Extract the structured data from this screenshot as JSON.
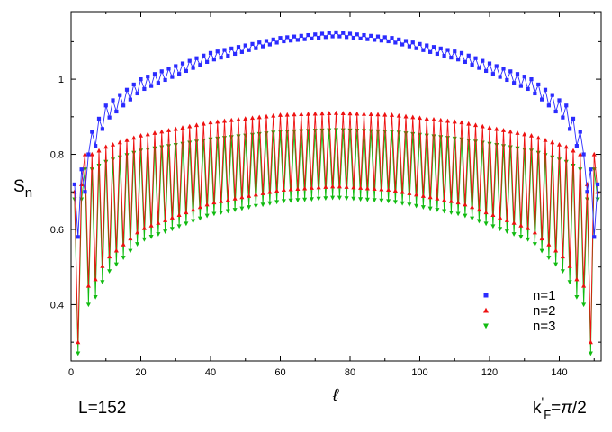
{
  "chart_data": {
    "type": "line",
    "title": "",
    "xlabel": "ℓ",
    "ylabel": "S",
    "ylabel_subscript": "n",
    "xlim": [
      0,
      152
    ],
    "ylim": [
      0.25,
      1.18
    ],
    "xticks": [
      0,
      20,
      40,
      60,
      80,
      100,
      120,
      140
    ],
    "yticks": [
      0.4,
      0.6,
      0.8,
      1
    ],
    "grid": false,
    "legend_position": "bottom-right",
    "L": 152,
    "series": [
      {
        "name": "n=1",
        "marker": "square",
        "color": "#2b2bff",
        "envelope_upper": {
          "at_ell": [
            6,
            10,
            20,
            40,
            60,
            76,
            92,
            112,
            132,
            142,
            146
          ],
          "value": [
            0.86,
            0.93,
            1.0,
            1.07,
            1.11,
            1.125,
            1.11,
            1.07,
            1.0,
            0.93,
            0.86
          ]
        },
        "envelope_lower": {
          "at_ell": [
            6,
            10,
            20,
            40,
            60,
            76,
            92,
            112,
            132,
            142,
            146
          ],
          "value": [
            0.8,
            0.89,
            0.97,
            1.05,
            1.1,
            1.115,
            1.1,
            1.05,
            0.97,
            0.89,
            0.8
          ]
        },
        "endpoints": [
          [
            1,
            0.72
          ],
          [
            2,
            0.58
          ],
          [
            3,
            0.76
          ],
          [
            4,
            0.7
          ],
          [
            148,
            0.7
          ],
          [
            149,
            0.76
          ],
          [
            150,
            0.58
          ],
          [
            151,
            0.72
          ]
        ]
      },
      {
        "name": "n=2",
        "marker": "triangle-up",
        "color": "#ee1111",
        "envelope_upper": {
          "at_ell": [
            6,
            10,
            20,
            40,
            60,
            76,
            92,
            112,
            132,
            142,
            146
          ],
          "value": [
            0.8,
            0.82,
            0.85,
            0.885,
            0.905,
            0.91,
            0.905,
            0.885,
            0.85,
            0.82,
            0.8
          ]
        },
        "envelope_lower": {
          "at_ell": [
            6,
            10,
            20,
            40,
            60,
            76,
            92,
            112,
            132,
            142,
            146
          ],
          "value": [
            0.45,
            0.52,
            0.6,
            0.67,
            0.705,
            0.715,
            0.705,
            0.67,
            0.6,
            0.52,
            0.45
          ]
        },
        "endpoints": [
          [
            1,
            0.7
          ],
          [
            2,
            0.3
          ],
          [
            3,
            0.72
          ],
          [
            148,
            0.72
          ],
          [
            149,
            0.3
          ],
          [
            151,
            0.7
          ]
        ]
      },
      {
        "name": "n=3",
        "marker": "triangle-down",
        "color": "#11bb11",
        "envelope_upper": {
          "at_ell": [
            6,
            10,
            20,
            40,
            60,
            76,
            92,
            112,
            132,
            142,
            146
          ],
          "value": [
            0.76,
            0.78,
            0.81,
            0.84,
            0.86,
            0.865,
            0.86,
            0.84,
            0.81,
            0.78,
            0.76
          ]
        },
        "envelope_lower": {
          "at_ell": [
            6,
            10,
            20,
            40,
            60,
            76,
            92,
            112,
            132,
            142,
            146
          ],
          "value": [
            0.4,
            0.48,
            0.57,
            0.64,
            0.675,
            0.685,
            0.675,
            0.64,
            0.57,
            0.48,
            0.4
          ]
        },
        "endpoints": [
          [
            1,
            0.68
          ],
          [
            2,
            0.27
          ],
          [
            3,
            0.68
          ],
          [
            148,
            0.68
          ],
          [
            149,
            0.27
          ],
          [
            151,
            0.68
          ]
        ]
      }
    ],
    "annotations": {
      "left": "L=152",
      "right_k": "k",
      "right_prime": "'",
      "right_sub": "F",
      "right_eq": "=",
      "right_pi": "π",
      "right_over2": "/2"
    }
  }
}
